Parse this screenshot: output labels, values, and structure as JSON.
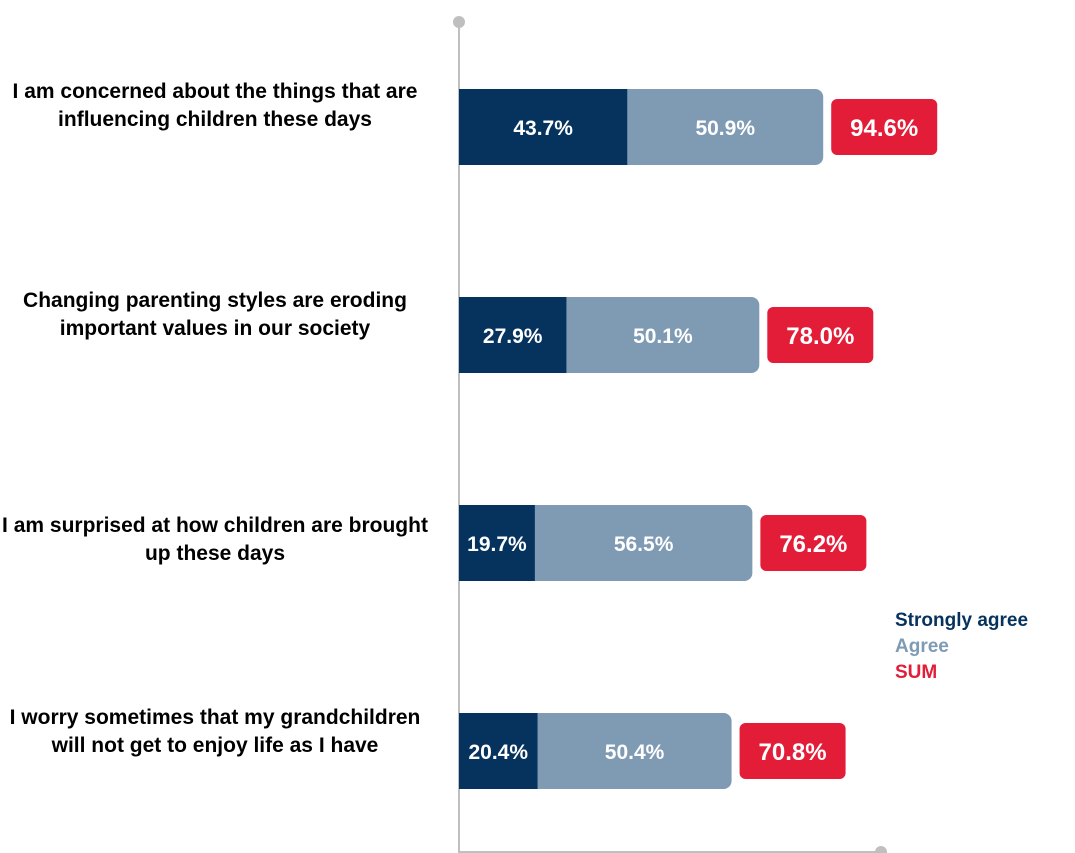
{
  "chart_data": {
    "type": "bar",
    "orientation": "horizontal",
    "stacked": true,
    "categories": [
      "I am concerned about the things that are influencing children these days",
      "Changing parenting styles are eroding important values in our society",
      "I am surprised at how children are brought up these days",
      "I worry sometimes that my grandchildren will not get to enjoy life as I have"
    ],
    "series": [
      {
        "name": "Strongly agree",
        "values": [
          43.7,
          27.9,
          19.7,
          20.4
        ],
        "labels": [
          "43.7%",
          "27.9%",
          "19.7%",
          "20.4%"
        ]
      },
      {
        "name": "Agree",
        "values": [
          50.9,
          50.1,
          56.5,
          50.4
        ],
        "labels": [
          "50.9%",
          "50.1%",
          "56.5%",
          "50.4%"
        ]
      }
    ],
    "sum": {
      "name": "SUM",
      "values": [
        94.6,
        78.0,
        76.2,
        70.8
      ],
      "labels": [
        "94.6%",
        "78.0%",
        "76.2%",
        "70.8%"
      ]
    },
    "colors": {
      "strongly_agree": "#06325e",
      "agree": "#7f9bb4",
      "sum": "#e31d38",
      "axis": "#bfbfbf"
    },
    "legend_position": "right",
    "grid": false
  },
  "legend": {
    "items": [
      "Strongly agree",
      "Agree",
      "SUM"
    ]
  }
}
